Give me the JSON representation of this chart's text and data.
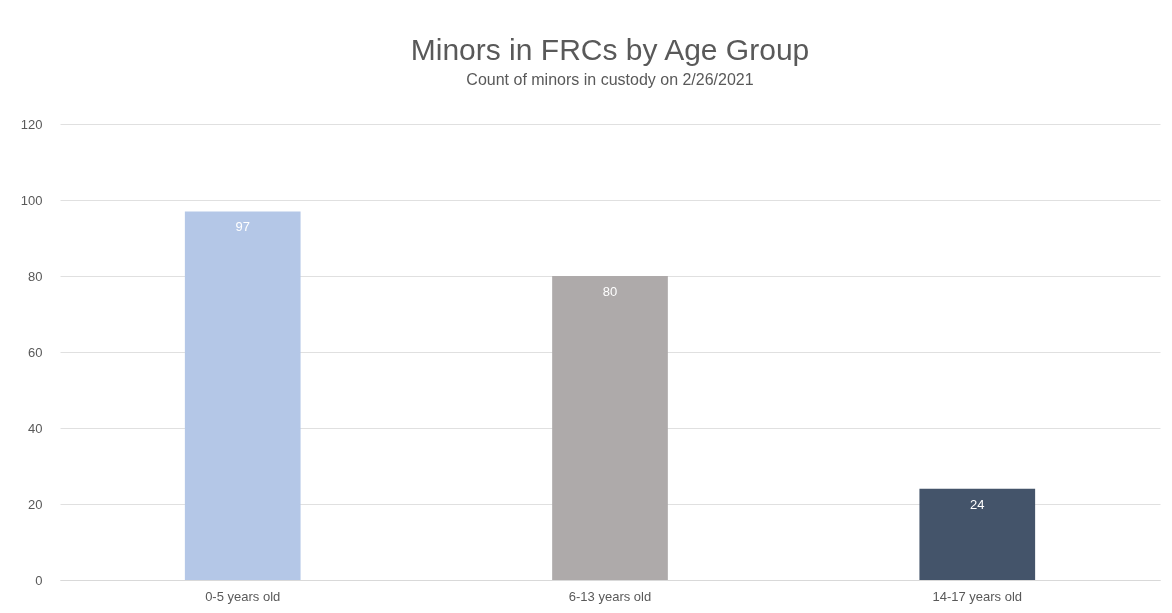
{
  "chart_data": {
    "type": "bar",
    "title": "Minors in FRCs by Age Group",
    "subtitle": "Count of minors in custody on 2/26/2021",
    "categories": [
      "0-5 years old",
      "6-13 years old",
      "14-17 years old"
    ],
    "values": [
      97,
      80,
      24
    ],
    "colors": [
      "#b4c7e7",
      "#aeaaaa",
      "#44546a"
    ],
    "ylim": [
      0,
      120
    ],
    "yticks": [
      0,
      20,
      40,
      60,
      80,
      100,
      120
    ],
    "grid": "y",
    "data_labels": true
  }
}
